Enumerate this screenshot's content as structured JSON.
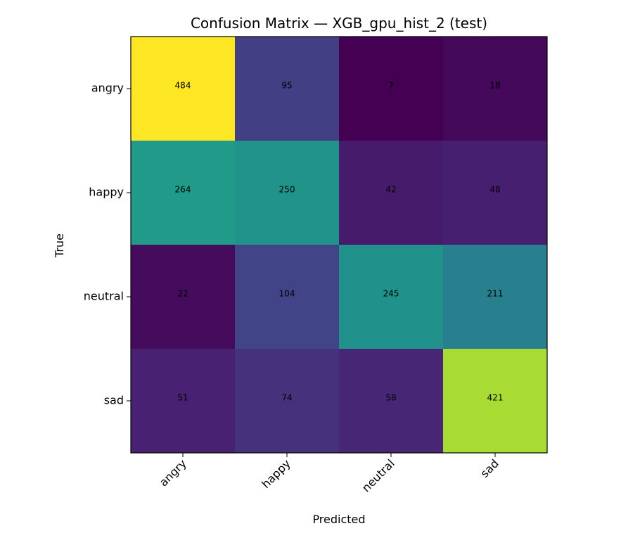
{
  "chart_data": {
    "type": "heatmap",
    "title": "Confusion Matrix — XGB_gpu_hist_2 (test)",
    "xlabel": "Predicted",
    "ylabel": "True",
    "x_categories": [
      "angry",
      "happy",
      "neutral",
      "sad"
    ],
    "y_categories": [
      "angry",
      "happy",
      "neutral",
      "sad"
    ],
    "values": [
      [
        484,
        95,
        7,
        18
      ],
      [
        264,
        250,
        42,
        48
      ],
      [
        22,
        104,
        245,
        211
      ],
      [
        51,
        74,
        58,
        421
      ]
    ],
    "colormap": "viridis",
    "value_range": [
      7,
      484
    ],
    "colorbar": false,
    "grid": false
  }
}
